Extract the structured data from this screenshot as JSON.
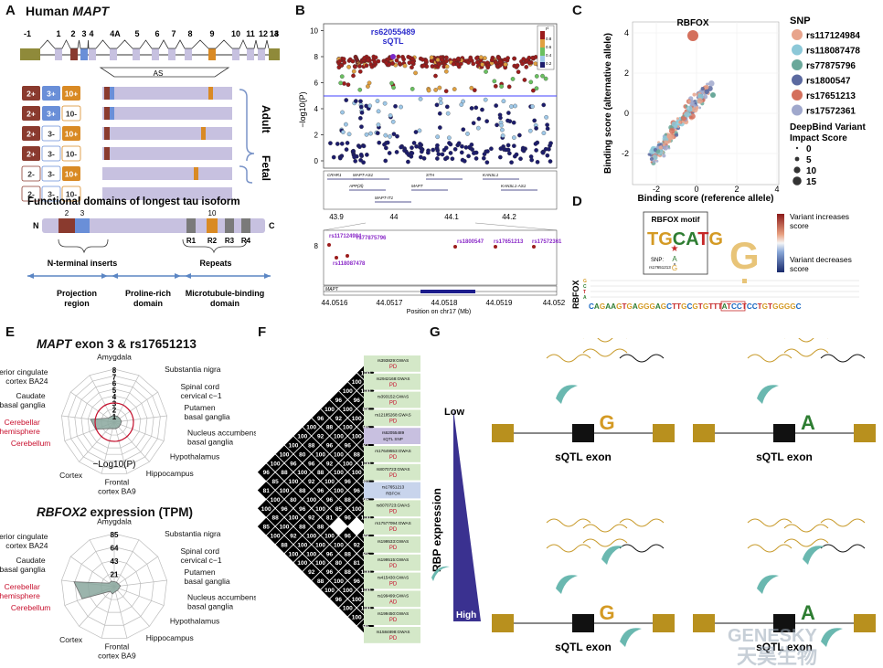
{
  "panels": {
    "A": {
      "letter": "A",
      "title_prefix": "Human ",
      "title_gene": "MAPT",
      "exon_numbers": [
        "-1",
        "1",
        "2",
        "3",
        "4",
        "4A",
        "5",
        "6",
        "7",
        "8",
        "9",
        "10",
        "11",
        "12",
        "13",
        "14"
      ],
      "as_label": "AS",
      "isoforms": [
        {
          "a": "2+",
          "b": "3+",
          "c": "10+"
        },
        {
          "a": "2+",
          "b": "3+",
          "c": "10-"
        },
        {
          "a": "2+",
          "b": "3-",
          "c": "10+"
        },
        {
          "a": "2+",
          "b": "3-",
          "c": "10-"
        },
        {
          "a": "2-",
          "b": "3-",
          "c": "10+"
        },
        {
          "a": "2-",
          "b": "3-",
          "c": "10-"
        }
      ],
      "adult_label": "Adult",
      "fetal_label": "Fetal",
      "domains_title": "Functional domains of longest tau isoform",
      "n_label": "N",
      "c_label": "C",
      "domain_num_2": "2",
      "domain_num_3": "3",
      "domain_num_10": "10",
      "repeats": [
        "R1",
        "R2",
        "R3",
        "R4"
      ],
      "n_terminal_inserts": "N-terminal inserts",
      "repeats_label": "Repeats",
      "projection": "Projection\nregion",
      "proline": "Proline-rich\ndomain",
      "mtbd": "Microtubule-binding\ndomain"
    },
    "B": {
      "letter": "B",
      "snp_label": "rs62055489",
      "sqtl_label": "sQTL",
      "y_label": "−log10(P)",
      "y_ticks": [
        "0",
        "2",
        "4",
        "6",
        "8",
        "10"
      ],
      "r2_label": "r²",
      "r2_ticks": [
        "0.8",
        "0.6",
        "0.4",
        "0.2"
      ],
      "genes_top": [
        "CRHR1",
        "MAPT-AS1",
        "STH",
        "KANSL1",
        "APP(2l)",
        "MAPT",
        "KANSL1-AS1",
        "MAPT-IT1"
      ],
      "x_ticks": [
        "43.9",
        "44",
        "44.1",
        "44.2"
      ],
      "zoom_snps": [
        "rs117124984",
        "rs77875796",
        "rs118087478",
        "rs1800547",
        "rs17651213",
        "rs17572361"
      ],
      "zoom_y_tick": "8",
      "zoom_gene": "MAPT",
      "zoom_x_ticks": [
        "44.0516",
        "44.0517",
        "44.0518",
        "44.0519",
        "44.052"
      ],
      "x_axis_label": "Position on chr17 (Mb)"
    },
    "C": {
      "letter": "C",
      "highlight": "RBFOX",
      "x_label": "Binding score (reference allele)",
      "y_label": "Binding score (alternative allele)",
      "x_ticks": [
        "-2",
        "0",
        "2",
        "4"
      ],
      "y_ticks": [
        "4",
        "2",
        "0",
        "-2"
      ],
      "snp_title": "SNP",
      "snps": [
        {
          "name": "rs117124984",
          "color": "#e8a48c"
        },
        {
          "name": "rs118087478",
          "color": "#8cc8d8"
        },
        {
          "name": "rs77875796",
          "color": "#6aa89a"
        },
        {
          "name": "rs1800547",
          "color": "#5c6aa0"
        },
        {
          "name": "rs17651213",
          "color": "#d4705c"
        },
        {
          "name": "rs17572361",
          "color": "#a0a8cc"
        }
      ],
      "size_title": "DeepBind Variant\nImpact Score",
      "sizes": [
        "0",
        "5",
        "10",
        "15"
      ]
    },
    "D": {
      "letter": "D",
      "motif_title": "RBFOX motif",
      "snp_text": "SNP:",
      "snp_id": "rs17651213",
      "increase": "Variant increases\nscore",
      "decrease": "Variant decreases\nscore",
      "row_label": "RBFOX",
      "sequence": "CAGAAGTGAGGGAGCTTGCGTGTTTATCCTCCTGTGGGGC"
    },
    "E": {
      "letter": "E",
      "title1_gene": "MAPT",
      "title1_rest": " exon 3 & rs17651213",
      "title2_gene": "RBFOX2",
      "title2_rest": " expression (TPM)",
      "tissues": [
        "Amygdala",
        "Substantia nigra",
        "Spinal cord\ncervical c−1",
        "Putamen\nbasal ganglia",
        "Nucleus accumbens\nbasal ganglia",
        "Hypothalamus",
        "Hippocampus",
        "Frontal\ncortex BA9",
        "Cortex",
        "Cerebellum",
        "Cerebellar\nhemisphere",
        "Caudate\nbasal ganglia",
        "Anterior cingulate\ncortex BA24"
      ],
      "radar1_ticks": [
        "8",
        "7",
        "6",
        "5",
        "4",
        "3",
        "2",
        "1"
      ],
      "radar1_values": [
        1.0,
        1.0,
        1.0,
        1.1,
        1.0,
        1.0,
        1.0,
        1.0,
        1.3,
        3.0,
        3.6,
        1.1,
        1.0
      ],
      "neglog_label": "−Log10(P)",
      "radar2_ticks": [
        "85",
        "64",
        "43",
        "21"
      ],
      "radar2_values": [
        8,
        8,
        8,
        10,
        8,
        8,
        8,
        12,
        10,
        55,
        65,
        10,
        10
      ]
    },
    "F": {
      "letter": "F",
      "triangle_values": [
        "100",
        "100",
        "100",
        "96",
        "100",
        "96",
        "100",
        "100",
        "100",
        "100",
        "100",
        "96",
        "100",
        "96",
        "100",
        "92",
        "88",
        "92",
        "88",
        "80",
        "96",
        "88",
        "85",
        "81",
        "88"
      ],
      "snps": [
        {
          "id": "rs393829:GWAS",
          "tag": "PD"
        },
        {
          "id": "rs2942168:GWAS",
          "tag": "PD"
        },
        {
          "id": "rs393152:GWAS",
          "tag": "PD"
        },
        {
          "id": "rs12185268:GWAS",
          "tag": "PD"
        },
        {
          "id": "rs62055489",
          "tag": "sQTL SNP"
        },
        {
          "id": "rs17649553:GWAS",
          "tag": "PD"
        },
        {
          "id": "rs8070723:GWAS",
          "tag": "PD"
        },
        {
          "id": "rs17651213",
          "tag": "RBFOX"
        },
        {
          "id": "rs8070723:GWAS",
          "tag": "PD"
        },
        {
          "id": "rs17577094:GWAS",
          "tag": "PD"
        },
        {
          "id": "rs199533:GWAS",
          "tag": "PD"
        },
        {
          "id": "rs199515:GWAS",
          "tag": "PD"
        },
        {
          "id": "rs415430:GWAS",
          "tag": "PD"
        },
        {
          "id": "rs199499:GWAS",
          "tag": "AD"
        },
        {
          "id": "rs199450:GWAS",
          "tag": "PD"
        },
        {
          "id": "rs1584898:GWAS",
          "tag": "PD"
        }
      ]
    },
    "G": {
      "letter": "G",
      "low": "Low",
      "high": "High",
      "rbp_label": "RBP expression",
      "exon_label": "sQTL exon",
      "allele_g": "G",
      "allele_a": "A",
      "watermark_en": "GENESKY",
      "watermark_cn": "天昊生物"
    }
  }
}
